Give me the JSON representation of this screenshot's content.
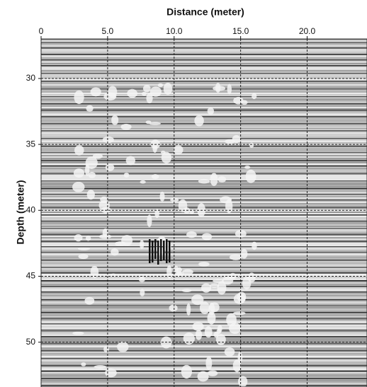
{
  "chart_data": {
    "type": "image",
    "title": "Distance (meter)",
    "y_label": "Depth (meter)",
    "xlim": [
      0,
      24.5
    ],
    "xticks": [
      0,
      {
        "value": 5,
        "label": "5.0"
      },
      {
        "value": 10,
        "label": "10.0"
      },
      {
        "value": 15,
        "label": "15.0"
      },
      {
        "value": 20,
        "label": "20.0"
      }
    ],
    "ylim": [
      27,
      53.4
    ],
    "yticks": [
      30,
      35,
      40,
      45,
      50
    ],
    "grid": true
  }
}
